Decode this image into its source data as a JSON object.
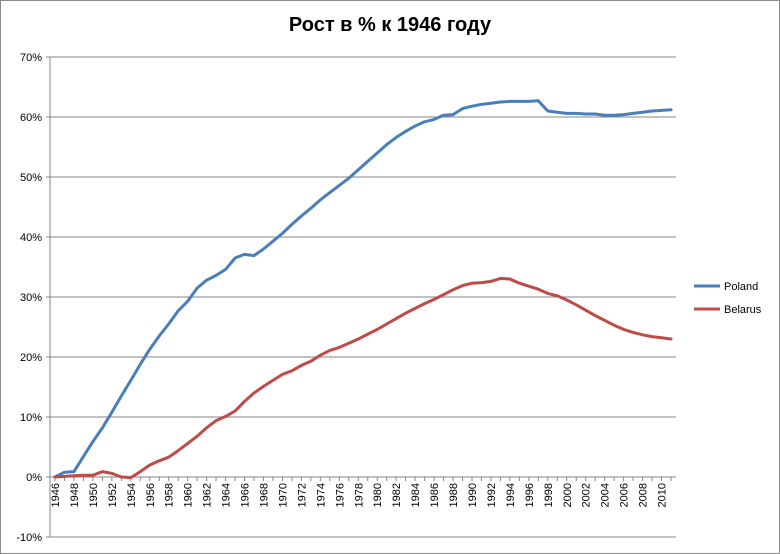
{
  "chart_data": {
    "type": "line",
    "title": "Рост в % к 1946 году",
    "xlabel": "",
    "ylabel": "",
    "ylim": [
      -10,
      70
    ],
    "y_ticks": [
      70,
      60,
      50,
      40,
      30,
      20,
      10,
      0,
      -10
    ],
    "y_tick_labels": [
      "70%",
      "60%",
      "50%",
      "40%",
      "30%",
      "20%",
      "10%",
      "0%",
      "-10%"
    ],
    "x_tick_labels": [
      "1946",
      "1948",
      "1950",
      "1952",
      "1954",
      "1956",
      "1958",
      "1960",
      "1962",
      "1964",
      "1966",
      "1968",
      "1970",
      "1972",
      "1974",
      "1976",
      "1978",
      "1980",
      "1982",
      "1984",
      "1986",
      "1988",
      "1990",
      "1992",
      "1994",
      "1996",
      "1998",
      "2000",
      "2002",
      "2004",
      "2006",
      "2008",
      "2010"
    ],
    "x": [
      1946,
      1947,
      1948,
      1949,
      1950,
      1951,
      1952,
      1953,
      1954,
      1955,
      1956,
      1957,
      1958,
      1959,
      1960,
      1961,
      1962,
      1963,
      1964,
      1965,
      1966,
      1967,
      1968,
      1969,
      1970,
      1971,
      1972,
      1973,
      1974,
      1975,
      1976,
      1977,
      1978,
      1979,
      1980,
      1981,
      1982,
      1983,
      1984,
      1985,
      1986,
      1987,
      1988,
      1989,
      1990,
      1991,
      1992,
      1993,
      1994,
      1995,
      1996,
      1997,
      1998,
      1999,
      2000,
      2001,
      2002,
      2003,
      2004,
      2005,
      2006,
      2007,
      2008,
      2009,
      2010,
      2011
    ],
    "grid": true,
    "legend_position": "right",
    "series": [
      {
        "name": "Poland",
        "color": "#4a7ebb",
        "values": [
          0,
          0.8,
          0.9,
          3.4,
          5.9,
          8.2,
          10.8,
          13.5,
          16.1,
          18.8,
          21.3,
          23.5,
          25.5,
          27.7,
          29.3,
          31.5,
          32.8,
          33.6,
          34.6,
          36.5,
          37.1,
          36.9,
          38.0,
          39.3,
          40.6,
          42.1,
          43.5,
          44.8,
          46.2,
          47.4,
          48.6,
          49.8,
          51.2,
          52.6,
          54.0,
          55.4,
          56.6,
          57.6,
          58.5,
          59.2,
          59.6,
          60.3,
          60.4,
          61.4,
          61.8,
          62.1,
          62.3,
          62.5,
          62.6,
          62.6,
          62.6,
          62.7,
          61.0,
          60.8,
          60.6,
          60.6,
          60.5,
          60.5,
          60.3,
          60.3,
          60.4,
          60.6,
          60.8,
          61.0,
          61.1,
          61.2
        ]
      },
      {
        "name": "Belarus",
        "color": "#be4b48",
        "values": [
          0,
          0.1,
          0.2,
          0.3,
          0.3,
          0.9,
          0.6,
          0,
          -0.1,
          0.9,
          2.0,
          2.7,
          3.3,
          4.4,
          5.6,
          6.8,
          8.2,
          9.4,
          10.1,
          11.0,
          12.6,
          14.0,
          15.1,
          16.1,
          17.1,
          17.7,
          18.6,
          19.3,
          20.3,
          21.1,
          21.6,
          22.3,
          23.0,
          23.8,
          24.6,
          25.5,
          26.4,
          27.3,
          28.1,
          28.9,
          29.6,
          30.4,
          31.2,
          31.9,
          32.3,
          32.4,
          32.6,
          33.1,
          33.0,
          32.3,
          31.8,
          31.3,
          30.6,
          30.2,
          29.5,
          28.7,
          27.8,
          26.9,
          26.1,
          25.3,
          24.6,
          24.1,
          23.7,
          23.4,
          23.2,
          23.0
        ]
      }
    ]
  }
}
